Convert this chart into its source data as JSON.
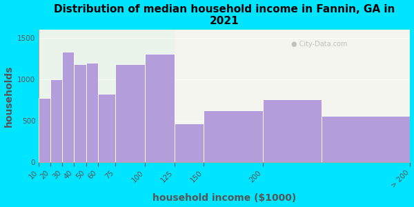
{
  "title": "Distribution of median household income in Fannin, GA in\n2021",
  "xlabel": "household income ($1000)",
  "ylabel": "households",
  "bar_lefts": [
    10,
    20,
    30,
    40,
    50,
    60,
    75,
    100,
    125,
    150,
    200,
    250
  ],
  "bar_widths": [
    10,
    10,
    10,
    10,
    10,
    15,
    25,
    25,
    25,
    50,
    50,
    75
  ],
  "values": [
    775,
    1005,
    1335,
    1185,
    1200,
    825,
    1185,
    1310,
    465,
    630,
    760,
    560
  ],
  "xtick_positions": [
    10,
    20,
    30,
    40,
    50,
    60,
    75,
    100,
    125,
    150,
    200,
    325
  ],
  "xtick_labels": [
    "10",
    "20",
    "30",
    "40",
    "50",
    "60",
    "75",
    "100",
    "125",
    "150",
    "200",
    "> 200"
  ],
  "bar_color": "#b39ddb",
  "background_outer": "#00e5ff",
  "background_inner_left": "#eaf4ea",
  "background_inner_right": "#f5f5f0",
  "divider_x": 125,
  "ylim": [
    0,
    1600
  ],
  "yticks": [
    0,
    500,
    1000,
    1500
  ],
  "title_fontsize": 11,
  "axis_label_fontsize": 10
}
